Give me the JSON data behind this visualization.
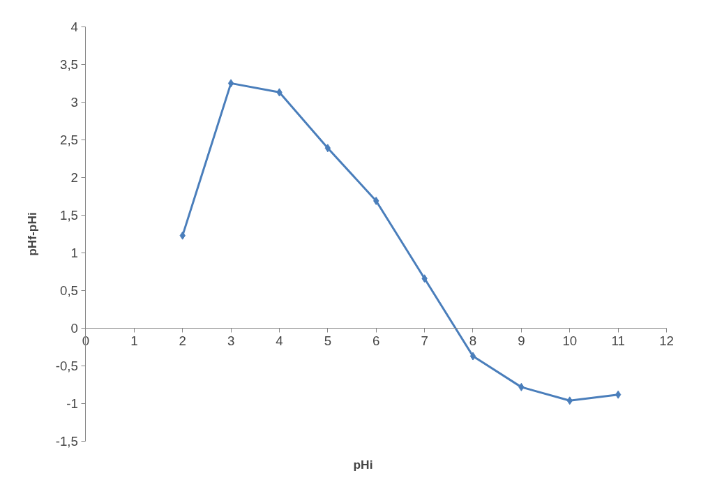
{
  "chart_data": {
    "type": "line",
    "xlabel": "pHi",
    "ylabel": "pHf-pHi",
    "x": [
      2,
      3,
      4,
      5,
      6,
      7,
      8,
      9,
      10,
      11
    ],
    "series": [
      {
        "color": "#4a7ebb",
        "values": [
          1.23,
          3.25,
          3.13,
          2.39,
          1.69,
          0.66,
          -0.37,
          -0.78,
          -0.96,
          -0.88
        ]
      }
    ],
    "xlim": [
      0,
      12
    ],
    "xticks": [
      0,
      1,
      2,
      3,
      4,
      5,
      6,
      7,
      8,
      9,
      10,
      11,
      12
    ],
    "ylim": [
      -1.5,
      4
    ],
    "yticks": [
      {
        "value": -1.5,
        "label": "-1,5"
      },
      -1,
      {
        "value": -0.5,
        "label": "-0,5"
      },
      0,
      {
        "value": 0.5,
        "label": "0,5"
      },
      1,
      {
        "value": 1.5,
        "label": "1,5"
      },
      2,
      {
        "value": 2.5,
        "label": "2,5"
      },
      3,
      {
        "value": 3.5,
        "label": "3,5"
      },
      4
    ],
    "marker": "diamond"
  }
}
